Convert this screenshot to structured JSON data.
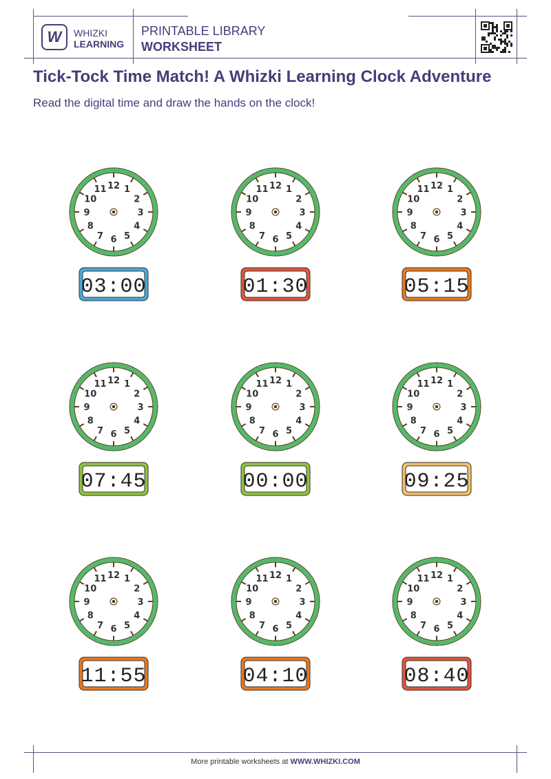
{
  "header": {
    "logo_letter": "W",
    "brand_top": "WHIZKI",
    "brand_bottom": "LEARNING",
    "library_label": "PRINTABLE LIBRARY",
    "type_label": "WORKSHEET",
    "qr_icon": "qr-code-icon"
  },
  "title": "Tick-Tock Time Match! A Whizki Learning Clock Adventure",
  "instructions": "Read the digital time and draw the hands on the clock!",
  "clock_numbers": [
    "12",
    "1",
    "2",
    "3",
    "4",
    "5",
    "6",
    "7",
    "8",
    "9",
    "10",
    "11"
  ],
  "colors": {
    "clock_ring": "#55b96a",
    "tick": "#5a3e1e",
    "text": "#4a3b78"
  },
  "clocks": [
    {
      "time": "03:00",
      "border": "#4aa8d8"
    },
    {
      "time": "01:30",
      "border": "#e0553a"
    },
    {
      "time": "05:15",
      "border": "#e8791e"
    },
    {
      "time": "07:45",
      "border": "#8cc43c"
    },
    {
      "time": "00:00",
      "border": "#8cc43c"
    },
    {
      "time": "09:25",
      "border": "#f3bf6a"
    },
    {
      "time": "11:55",
      "border": "#e8791e"
    },
    {
      "time": "04:10",
      "border": "#e8791e"
    },
    {
      "time": "08:40",
      "border": "#e0553a"
    }
  ],
  "footer": {
    "text": "More printable worksheets at ",
    "link": "WWW.WHIZKI.COM"
  }
}
